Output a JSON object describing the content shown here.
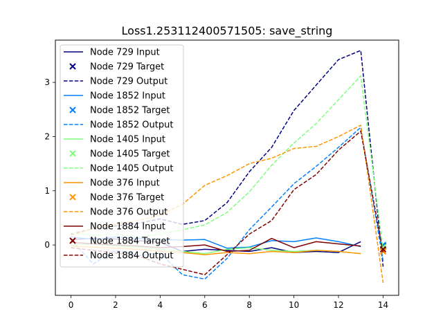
{
  "chart_data": {
    "type": "line",
    "title": "Loss1.253112400571505: save_string",
    "xlabel": "",
    "ylabel": "",
    "xlim": [
      -0.7,
      14.7
    ],
    "ylim": [
      -0.93,
      3.78
    ],
    "xticks": [
      0,
      2,
      4,
      6,
      8,
      10,
      12,
      14
    ],
    "yticks": [
      0,
      1,
      2,
      3
    ],
    "grid": false,
    "legend_position": "top-left",
    "series": [
      {
        "name": "Node 729 Input",
        "style": "solid",
        "color": "#00007f",
        "x": [
          0,
          1,
          2,
          3,
          4,
          5,
          6,
          7,
          8,
          9,
          10,
          11,
          12,
          13
        ],
        "y": [
          0.1,
          0.12,
          0.11,
          0.08,
          0.05,
          -0.12,
          -0.08,
          -0.1,
          -0.12,
          -0.05,
          -0.14,
          -0.12,
          -0.14,
          0.06
        ]
      },
      {
        "name": "Node 729 Target",
        "style": "marker",
        "color": "#00007f",
        "x": [
          14
        ],
        "y": [
          -0.02
        ]
      },
      {
        "name": "Node 729 Output",
        "style": "dashed",
        "color": "#00007f",
        "x": [
          0,
          1,
          2,
          3,
          4,
          5,
          6,
          7,
          8,
          9,
          10,
          11,
          12,
          13,
          14
        ],
        "y": [
          0.2,
          0.3,
          0.35,
          0.4,
          0.48,
          0.38,
          0.45,
          0.78,
          1.35,
          1.8,
          2.48,
          2.95,
          3.42,
          3.59,
          -0.4
        ]
      },
      {
        "name": "Node 1852 Input",
        "style": "solid",
        "color": "#0080ff",
        "x": [
          0,
          1,
          2,
          3,
          4,
          5,
          6,
          7,
          8,
          9,
          10,
          11,
          12,
          13
        ],
        "y": [
          0.15,
          0.1,
          0.15,
          0.12,
          0.1,
          0.09,
          0.1,
          -0.06,
          -0.04,
          0.08,
          0.06,
          0.13,
          0.06,
          -0.03
        ]
      },
      {
        "name": "Node 1852 Target",
        "style": "marker",
        "color": "#0080ff",
        "x": [
          14
        ],
        "y": [
          0.0
        ]
      },
      {
        "name": "Node 1852 Output",
        "style": "dashed",
        "color": "#0080ff",
        "x": [
          0,
          1,
          2,
          3,
          4,
          5,
          6,
          7,
          8,
          9,
          10,
          11,
          12,
          13,
          14
        ],
        "y": [
          0.1,
          -0.35,
          -0.1,
          -0.2,
          -0.15,
          -0.55,
          -0.63,
          -0.25,
          0.28,
          0.7,
          1.13,
          1.45,
          1.8,
          2.17,
          -0.3
        ]
      },
      {
        "name": "Node 1405 Input",
        "style": "solid",
        "color": "#7dff7a",
        "x": [
          0,
          1,
          2,
          3,
          4,
          5,
          6,
          7,
          8,
          9,
          10,
          11,
          12,
          13
        ],
        "y": [
          0.0,
          0.02,
          -0.02,
          -0.04,
          -0.08,
          -0.12,
          -0.16,
          -0.08,
          -0.05,
          -0.1,
          -0.12,
          -0.1,
          -0.12,
          -0.16
        ]
      },
      {
        "name": "Node 1405 Target",
        "style": "marker",
        "color": "#7dff7a",
        "x": [
          14
        ],
        "y": [
          -0.04
        ]
      },
      {
        "name": "Node 1405 Output",
        "style": "dashed",
        "color": "#7dff7a",
        "x": [
          0,
          1,
          2,
          3,
          4,
          5,
          6,
          7,
          8,
          9,
          10,
          11,
          12,
          13,
          14
        ],
        "y": [
          0.22,
          0.18,
          0.2,
          0.15,
          0.2,
          0.28,
          0.37,
          0.6,
          0.98,
          1.47,
          1.88,
          2.24,
          2.68,
          3.12,
          -0.1
        ]
      },
      {
        "name": "Node 376 Input",
        "style": "solid",
        "color": "#ff9400",
        "x": [
          0,
          1,
          2,
          3,
          4,
          5,
          6,
          7,
          8,
          9,
          10,
          11,
          12,
          13
        ],
        "y": [
          -0.02,
          -0.04,
          -0.06,
          -0.08,
          -0.12,
          -0.14,
          -0.18,
          -0.14,
          -0.16,
          -0.12,
          -0.14,
          -0.1,
          -0.12,
          -0.16
        ]
      },
      {
        "name": "Node 376 Target",
        "style": "marker",
        "color": "#ff9400",
        "x": [
          14
        ],
        "y": [
          -0.12
        ]
      },
      {
        "name": "Node 376 Output",
        "style": "dashed",
        "color": "#ff9400",
        "x": [
          0,
          1,
          2,
          3,
          4,
          5,
          6,
          7,
          8,
          9,
          10,
          11,
          12,
          13,
          14
        ],
        "y": [
          0.18,
          0.3,
          0.38,
          0.45,
          0.55,
          0.75,
          1.1,
          1.28,
          1.5,
          1.6,
          1.78,
          1.82,
          2.0,
          2.21,
          -0.7
        ]
      },
      {
        "name": "Node 1884 Input",
        "style": "solid",
        "color": "#7f0000",
        "x": [
          0,
          1,
          2,
          3,
          4,
          5,
          6,
          7,
          8,
          9,
          10,
          11,
          12,
          13
        ],
        "y": [
          0.05,
          0.02,
          0.0,
          -0.02,
          -0.05,
          -0.03,
          0.0,
          -0.12,
          -0.1,
          0.12,
          -0.05,
          0.06,
          0.02,
          -0.02
        ]
      },
      {
        "name": "Node 1884 Target",
        "style": "marker",
        "color": "#7f0000",
        "x": [
          14
        ],
        "y": [
          -0.08
        ]
      },
      {
        "name": "Node 1884 Output",
        "style": "dashed",
        "color": "#7f0000",
        "x": [
          0,
          1,
          2,
          3,
          4,
          5,
          6,
          7,
          8,
          9,
          10,
          11,
          12,
          13,
          14
        ],
        "y": [
          -0.05,
          -0.1,
          -0.15,
          -0.2,
          -0.35,
          -0.45,
          -0.55,
          -0.18,
          0.2,
          0.45,
          1.02,
          1.3,
          1.75,
          2.1,
          -0.15
        ]
      }
    ]
  }
}
